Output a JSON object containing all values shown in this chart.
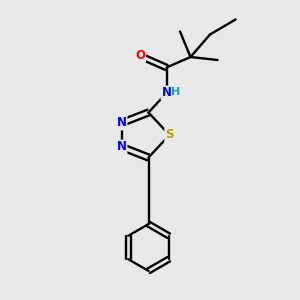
{
  "background_color": "#e8e8e8",
  "atom_colors": {
    "C": "#000000",
    "N": "#0000ff",
    "O": "#ff0000",
    "S": "#b8a000",
    "H": "#00aaaa"
  },
  "figsize": [
    3.0,
    3.0
  ],
  "dpi": 100
}
